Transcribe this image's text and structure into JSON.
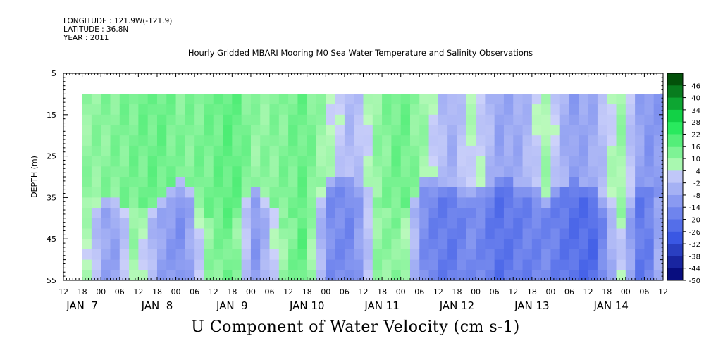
{
  "header": {
    "longitude": "LONGITUDE : 121.9W(-121.9)",
    "latitude": "LATITUDE : 36.8N",
    "year": "YEAR : 2011"
  },
  "chart_data": {
    "type": "heatmap",
    "title": "Hourly Gridded MBARI Mooring M0 Sea Water Temperature and Salinity Observations",
    "footer_title": "U Component of Water Velocity (cm s-1)",
    "ylabel": "DEPTH (m)",
    "y_ticks": [
      5,
      15,
      25,
      35,
      45,
      55
    ],
    "ylim": [
      5,
      55
    ],
    "y_inverted": true,
    "data_depth_range": [
      10,
      55
    ],
    "x_range_hours": [
      "JAN 6 12:00",
      "JAN 14 12:00"
    ],
    "data_start": "JAN 6 18:00",
    "x_hour_labels": [
      "12",
      "18",
      "00",
      "06",
      "12",
      "18",
      "00",
      "06",
      "12",
      "18",
      "00",
      "06",
      "12",
      "18",
      "00",
      "06",
      "12",
      "18",
      "00",
      "06",
      "12",
      "18",
      "00",
      "06",
      "12",
      "18",
      "00",
      "06",
      "12",
      "18",
      "00",
      "06",
      "12"
    ],
    "x_day_labels": [
      "JAN  7",
      "JAN  8",
      "JAN  9",
      "JAN 10",
      "JAN 11",
      "JAN 12",
      "JAN 13",
      "JAN 14"
    ],
    "colorbar": {
      "labels": [
        "46",
        "40",
        "34",
        "28",
        "22",
        "16",
        "10",
        "4",
        "-2",
        "-8",
        "-14",
        "-20",
        "-26",
        "-32",
        "-38",
        "-44",
        "-50"
      ],
      "min": -50,
      "max": 52,
      "step": 6
    },
    "column_patterns": [
      {
        "surface": 10,
        "bottom": 6,
        "lower_depth": 35
      },
      {
        "surface": 12,
        "bottom": -12,
        "lower_depth": 35
      },
      {
        "surface": 14,
        "bottom": 10,
        "lower_depth": 38
      },
      {
        "surface": 16,
        "bottom": -8,
        "lower_depth": 36
      },
      {
        "surface": 12,
        "bottom": -14,
        "lower_depth": 30
      },
      {
        "surface": 14,
        "bottom": 10,
        "lower_depth": 40
      },
      {
        "surface": 18,
        "bottom": 16,
        "lower_depth": 40
      },
      {
        "surface": 10,
        "bottom": -12,
        "lower_depth": 32
      },
      {
        "surface": 12,
        "bottom": 8,
        "lower_depth": 40
      },
      {
        "surface": 16,
        "bottom": 18,
        "lower_depth": 40
      },
      {
        "surface": 6,
        "bottom": -14,
        "lower_depth": 30
      },
      {
        "surface": -4,
        "bottom": -16,
        "lower_depth": 30
      },
      {
        "surface": 10,
        "bottom": 10,
        "lower_depth": 36
      },
      {
        "surface": 16,
        "bottom": 12,
        "lower_depth": 40
      },
      {
        "surface": 8,
        "bottom": -16,
        "lower_depth": 30
      },
      {
        "surface": -6,
        "bottom": -20,
        "lower_depth": 32
      },
      {
        "surface": 6,
        "bottom": -14,
        "lower_depth": 34
      },
      {
        "surface": -8,
        "bottom": -22,
        "lower_depth": 30
      },
      {
        "surface": -6,
        "bottom": -18,
        "lower_depth": 32
      },
      {
        "surface": 8,
        "bottom": -16,
        "lower_depth": 35
      },
      {
        "surface": -10,
        "bottom": -22,
        "lower_depth": 30
      },
      {
        "surface": -6,
        "bottom": -24,
        "lower_depth": 34
      },
      {
        "surface": 10,
        "bottom": 4,
        "lower_depth": 40
      },
      {
        "surface": -12,
        "bottom": -24,
        "lower_depth": 30
      },
      {
        "surface": -10,
        "bottom": 4,
        "lower_depth": 40
      }
    ]
  }
}
